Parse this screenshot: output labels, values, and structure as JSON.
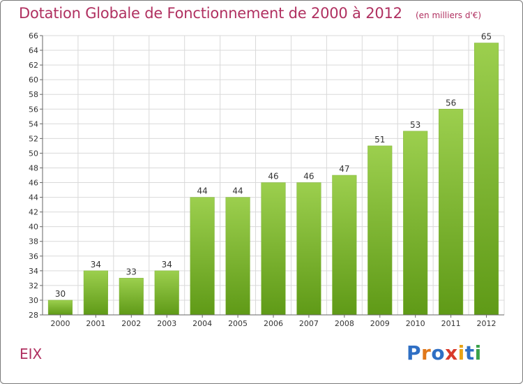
{
  "chart_data": {
    "type": "bar",
    "title": "Dotation Globale de Fonctionnement de 2000 à 2012",
    "unit_note": "(en milliers d'€)",
    "categories": [
      "2000",
      "2001",
      "2002",
      "2003",
      "2004",
      "2005",
      "2006",
      "2007",
      "2008",
      "2009",
      "2010",
      "2011",
      "2012"
    ],
    "values": [
      30,
      34,
      33,
      34,
      44,
      44,
      46,
      46,
      47,
      51,
      53,
      56,
      65
    ],
    "ylim": [
      28,
      66
    ],
    "yticks": [
      28,
      30,
      32,
      34,
      36,
      38,
      40,
      42,
      44,
      46,
      48,
      50,
      52,
      54,
      56,
      58,
      60,
      62,
      64,
      66
    ],
    "xlabel": "",
    "ylabel": "",
    "grid": true,
    "bar_color_light": "#9ccf4e",
    "bar_color_dark": "#5f9a17"
  },
  "commune": "EIX",
  "logo": {
    "text": "Proxiti",
    "letter_colors": [
      "#2f6fc4",
      "#e0781b",
      "#2f6fc4",
      "#d93a2b",
      "#e8a317",
      "#2f6fc4",
      "#3aa24a"
    ]
  },
  "colors": {
    "accent": "#b03060",
    "grid": "#d9d9d9",
    "axis": "#666666",
    "label": "#333333"
  }
}
